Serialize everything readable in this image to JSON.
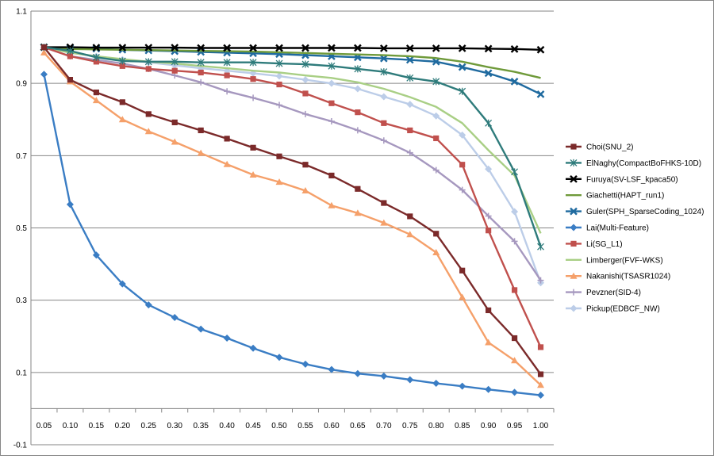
{
  "chart_data": {
    "type": "line",
    "title": "",
    "xlabel": "",
    "ylabel": "",
    "ylim": [
      -0.1,
      1.1
    ],
    "y_ticks": [
      "-0.1",
      "0.1",
      "0.3",
      "0.5",
      "0.7",
      "0.9",
      "1.1"
    ],
    "grid": "horizontal",
    "legend_position": "right",
    "categories": [
      "0.05",
      "0.10",
      "0.15",
      "0.20",
      "0.25",
      "0.30",
      "0.35",
      "0.40",
      "0.45",
      "0.50",
      "0.55",
      "0.60",
      "0.65",
      "0.70",
      "0.75",
      "0.80",
      "0.85",
      "0.90",
      "0.95",
      "1.00"
    ],
    "series": [
      {
        "name": "Choi(SNU_2)",
        "color": "#7b2a2a",
        "marker": "square",
        "values": [
          1.0,
          0.91,
          0.875,
          0.848,
          0.815,
          0.792,
          0.77,
          0.747,
          0.722,
          0.698,
          0.675,
          0.645,
          0.608,
          0.569,
          0.532,
          0.484,
          0.382,
          0.272,
          0.195,
          0.095
        ]
      },
      {
        "name": "ElNaghy(CompactBoFHKS-10D)",
        "color": "#2e7b7b",
        "marker": "star",
        "values": [
          1.0,
          0.99,
          0.972,
          0.962,
          0.96,
          0.96,
          0.958,
          0.958,
          0.958,
          0.955,
          0.953,
          0.948,
          0.94,
          0.932,
          0.915,
          0.905,
          0.878,
          0.79,
          0.655,
          0.448
        ]
      },
      {
        "name": "Furuya(SV-LSF_kpaca50)",
        "color": "#000000",
        "marker": "x",
        "values": [
          1.0,
          1.0,
          0.999,
          0.999,
          0.999,
          0.999,
          0.998,
          0.998,
          0.998,
          0.998,
          0.998,
          0.998,
          0.998,
          0.997,
          0.997,
          0.997,
          0.997,
          0.996,
          0.995,
          0.993
        ]
      },
      {
        "name": "Giachetti(HAPT_run1)",
        "color": "#6f9a3a",
        "marker": "none",
        "values": [
          1.0,
          0.995,
          0.994,
          0.993,
          0.992,
          0.991,
          0.99,
          0.989,
          0.988,
          0.986,
          0.984,
          0.982,
          0.98,
          0.978,
          0.975,
          0.97,
          0.96,
          0.945,
          0.932,
          0.915
        ]
      },
      {
        "name": "Guler(SPH_SparseCoding_1024)",
        "color": "#1f6a9f",
        "marker": "x",
        "values": [
          1.0,
          0.998,
          0.996,
          0.993,
          0.991,
          0.989,
          0.987,
          0.985,
          0.983,
          0.981,
          0.978,
          0.975,
          0.972,
          0.969,
          0.965,
          0.96,
          0.945,
          0.928,
          0.905,
          0.87
        ]
      },
      {
        "name": "Lai(Multi-Feature)",
        "color": "#3a7dc4",
        "marker": "diamond",
        "values": [
          0.925,
          0.565,
          0.425,
          0.345,
          0.287,
          0.252,
          0.22,
          0.195,
          0.167,
          0.142,
          0.123,
          0.108,
          0.097,
          0.09,
          0.08,
          0.07,
          0.062,
          0.053,
          0.045,
          0.037
        ]
      },
      {
        "name": "Li(SG_L1)",
        "color": "#c0504d",
        "marker": "square",
        "values": [
          1.0,
          0.975,
          0.96,
          0.948,
          0.94,
          0.935,
          0.93,
          0.922,
          0.912,
          0.897,
          0.872,
          0.845,
          0.82,
          0.79,
          0.77,
          0.748,
          0.675,
          0.493,
          0.328,
          0.17
        ]
      },
      {
        "name": "Limberger(FVF-WKS)",
        "color": "#a9cf85",
        "marker": "none",
        "values": [
          1.0,
          0.985,
          0.975,
          0.967,
          0.96,
          0.955,
          0.948,
          0.942,
          0.935,
          0.93,
          0.922,
          0.915,
          0.903,
          0.885,
          0.862,
          0.835,
          0.79,
          0.715,
          0.645,
          0.485
        ]
      },
      {
        "name": "Nakanishi(TSASR1024)",
        "color": "#f5a06a",
        "marker": "triangle",
        "values": [
          0.985,
          0.905,
          0.853,
          0.8,
          0.767,
          0.738,
          0.707,
          0.676,
          0.647,
          0.627,
          0.603,
          0.562,
          0.541,
          0.514,
          0.482,
          0.432,
          0.308,
          0.183,
          0.133,
          0.065
        ]
      },
      {
        "name": "Pevzner(SID-4)",
        "color": "#a698bf",
        "marker": "cross",
        "values": [
          1.0,
          0.975,
          0.965,
          0.955,
          0.94,
          0.922,
          0.903,
          0.878,
          0.86,
          0.84,
          0.815,
          0.795,
          0.77,
          0.742,
          0.708,
          0.66,
          0.605,
          0.533,
          0.463,
          0.355
        ]
      },
      {
        "name": "Pickup(EDBCF_NW)",
        "color": "#bccde8",
        "marker": "diamond",
        "values": [
          1.0,
          0.985,
          0.975,
          0.966,
          0.958,
          0.95,
          0.942,
          0.935,
          0.928,
          0.92,
          0.91,
          0.9,
          0.885,
          0.863,
          0.842,
          0.81,
          0.757,
          0.663,
          0.545,
          0.348
        ]
      }
    ]
  }
}
